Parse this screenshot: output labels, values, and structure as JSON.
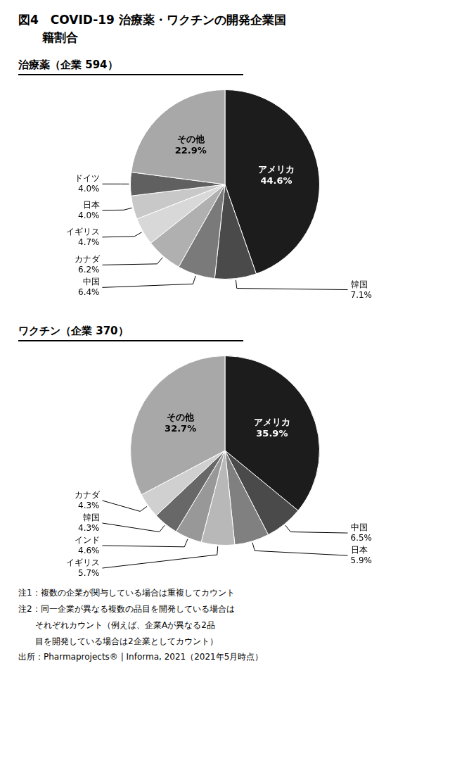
{
  "title": [
    "図4　COVID-19 治療薬・ワクチンの開発企業国",
    "　　籍割合"
  ],
  "chart_data": [
    {
      "type": "pie",
      "title": "治療薬（企業 594）",
      "categories": [
        "アメリカ",
        "韓国",
        "中国",
        "カナダ",
        "イギリス",
        "日本",
        "ドイツ",
        "その他"
      ],
      "values": [
        44.6,
        7.1,
        6.4,
        6.2,
        4.7,
        4.0,
        4.0,
        22.9
      ],
      "value_labels": [
        "44.6%",
        "7.1%",
        "6.4%",
        "6.2%",
        "4.7%",
        "4.0%",
        "4.0%",
        "22.9%"
      ],
      "colors": [
        "#1c1c1c",
        "#4a4a4a",
        "#7a7a7a",
        "#b0b0b0",
        "#d8d8d8",
        "#c8c8c8",
        "#606060",
        "#a8a8a8"
      ],
      "data_labels": true,
      "legend": false
    },
    {
      "type": "pie",
      "title": "ワクチン（企業 370）",
      "categories": [
        "アメリカ",
        "中国",
        "日本",
        "イギリス",
        "インド",
        "韓国",
        "カナダ",
        "その他"
      ],
      "values": [
        35.9,
        6.5,
        5.9,
        5.7,
        4.6,
        4.3,
        4.3,
        32.7
      ],
      "value_labels": [
        "35.9%",
        "6.5%",
        "5.9%",
        "5.7%",
        "4.6%",
        "4.3%",
        "4.3%",
        "32.7%"
      ],
      "colors": [
        "#1c1c1c",
        "#4a4a4a",
        "#808080",
        "#b8b8b8",
        "#989898",
        "#686868",
        "#d0d0d0",
        "#a8a8a8"
      ],
      "data_labels": true,
      "legend": false
    }
  ],
  "annotations": [
    "注1：複数の企業が関与している場合は重複してカウント",
    "注2：同一企業が異なる複数の品目を開発している場合は",
    "　　それぞれカウント（例えば、企業Aが異なる2品",
    "　　目を開発している場合は2企業としてカウント）",
    "出所：Pharmaprojects® | Informa, 2021（2021年5月時点）"
  ]
}
